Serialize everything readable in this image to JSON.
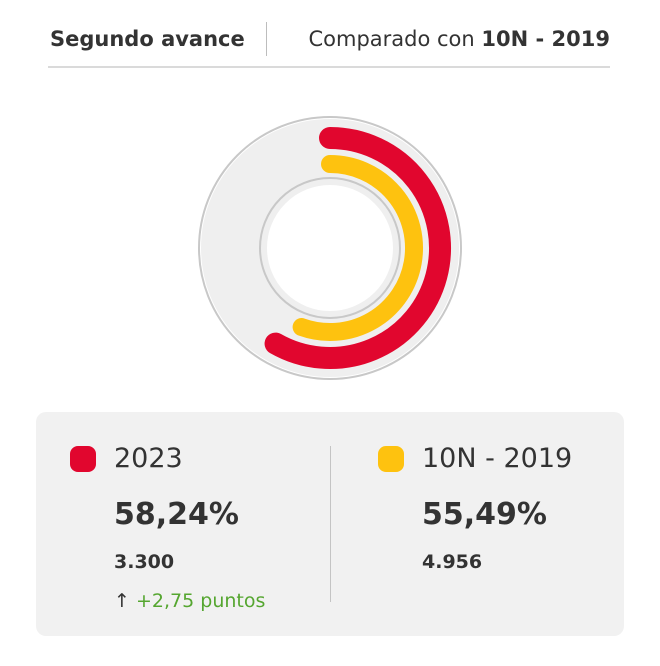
{
  "header": {
    "title": "Segundo avance",
    "compare_prefix": "Comparado con",
    "compare_target": "10N - 2019"
  },
  "colors": {
    "current": "#e1062e",
    "previous": "#fec20f",
    "track": "#efefef",
    "outline": "#c8c8c8",
    "positive": "#55a630"
  },
  "chart_data": {
    "type": "pie",
    "style": "concentric-donut",
    "max": 100,
    "series": [
      {
        "name": "2023",
        "value": 58.24,
        "color": "#e1062e",
        "ring": "outer"
      },
      {
        "name": "10N - 2019",
        "value": 55.49,
        "color": "#fec20f",
        "ring": "inner"
      }
    ]
  },
  "summary": {
    "current": {
      "label": "2023",
      "percentage": "58,24%",
      "count": "3.300",
      "delta_arrow": "↑",
      "delta": "+2,75 puntos"
    },
    "previous": {
      "label": "10N - 2019",
      "percentage": "55,49%",
      "count": "4.956"
    }
  }
}
